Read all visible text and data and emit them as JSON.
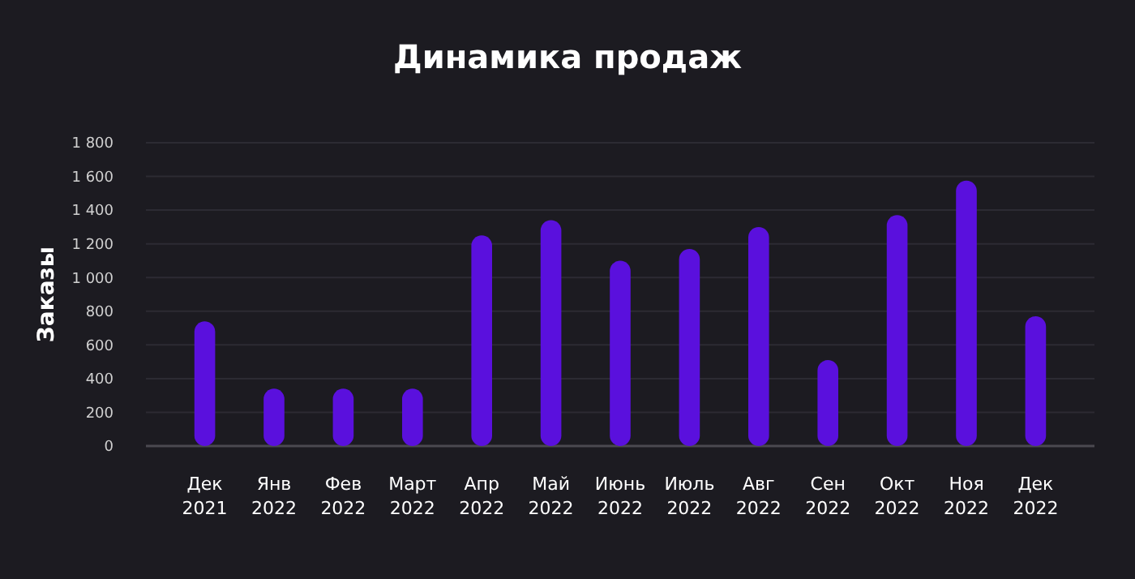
{
  "chart_data": {
    "type": "bar",
    "title": "Динамика продаж",
    "ylabel": "Заказы",
    "categories": [
      "Дек\n2021",
      "Янв\n2022",
      "Фев\n2022",
      "Март\n2022",
      "Апр\n2022",
      "Май\n2022",
      "Июнь\n2022",
      "Июль\n2022",
      "Авг\n2022",
      "Сен\n2022",
      "Окт\n2022",
      "Ноя\n2022",
      "Дек\n2022"
    ],
    "values": [
      740,
      340,
      340,
      340,
      1250,
      1340,
      1100,
      1170,
      1300,
      510,
      1370,
      1575,
      770
    ],
    "color": "#5a10dd",
    "ylim": [
      0,
      1800
    ],
    "yticks": [
      {
        "value": 0,
        "label": "0"
      },
      {
        "value": 200,
        "label": "200"
      },
      {
        "value": 400,
        "label": "400"
      },
      {
        "value": 600,
        "label": "600"
      },
      {
        "value": 800,
        "label": "800"
      },
      {
        "value": 1000,
        "label": "1 000"
      },
      {
        "value": 1200,
        "label": "1 200"
      },
      {
        "value": 1400,
        "label": "1 400"
      },
      {
        "value": 1600,
        "label": "1 600"
      },
      {
        "value": 1800,
        "label": "1 800"
      }
    ],
    "grid": true
  }
}
